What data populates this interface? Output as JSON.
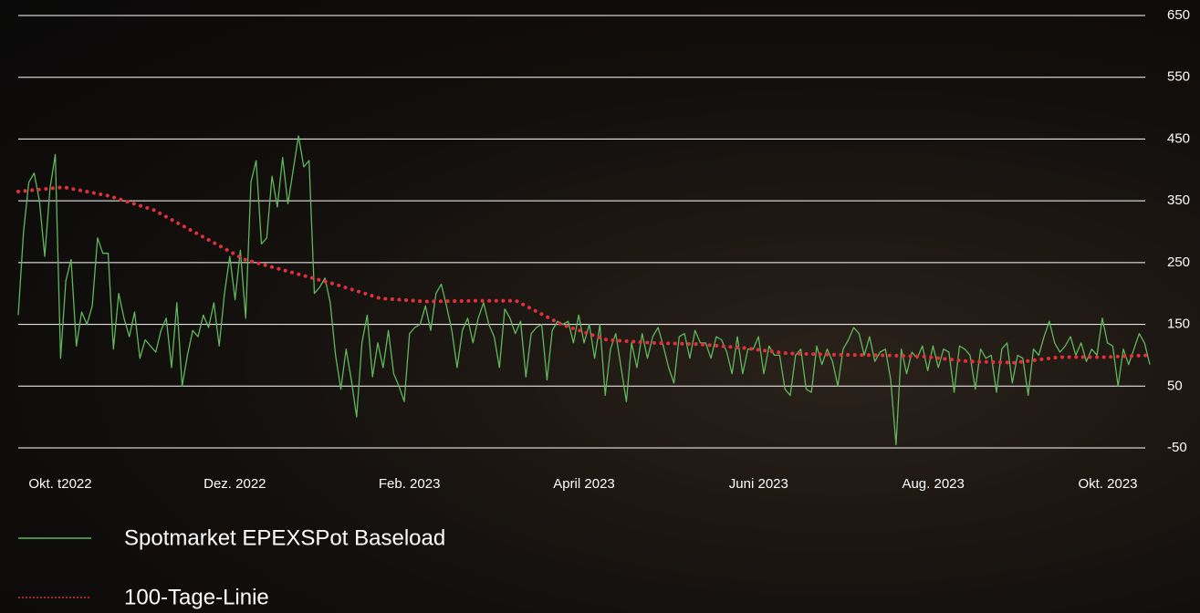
{
  "chart_data": {
    "type": "line",
    "x_labels": [
      "Okt. t2022",
      "Dez. 2022",
      "Feb. 2023",
      "April 2023",
      "Juni 2023",
      "Aug. 2023",
      "Okt. 2023"
    ],
    "ylim": [
      -50,
      650
    ],
    "yticks": [
      -50,
      50,
      150,
      250,
      350,
      450,
      550,
      650
    ],
    "grid": true,
    "series": [
      {
        "name": "Spotmarket EPEXSPot Baseload",
        "color": "#5fb85a",
        "style": "solid",
        "values": [
          165,
          300,
          380,
          395,
          350,
          260,
          370,
          425,
          95,
          220,
          255,
          115,
          170,
          150,
          180,
          290,
          265,
          265,
          110,
          200,
          160,
          130,
          170,
          95,
          125,
          115,
          105,
          140,
          160,
          80,
          185,
          50,
          100,
          140,
          130,
          165,
          145,
          185,
          115,
          200,
          260,
          190,
          270,
          160,
          380,
          415,
          280,
          290,
          390,
          340,
          420,
          345,
          400,
          455,
          405,
          415,
          200,
          210,
          225,
          185,
          100,
          45,
          110,
          60,
          0,
          120,
          165,
          65,
          120,
          80,
          140,
          70,
          50,
          25,
          135,
          145,
          150,
          180,
          140,
          200,
          215,
          180,
          140,
          80,
          140,
          160,
          120,
          160,
          185,
          150,
          130,
          80,
          175,
          160,
          135,
          155,
          65,
          135,
          145,
          150,
          60,
          140,
          155,
          150,
          155,
          120,
          165,
          120,
          150,
          95,
          150,
          35,
          110,
          135,
          80,
          25,
          120,
          80,
          135,
          95,
          130,
          145,
          115,
          80,
          55,
          130,
          135,
          95,
          140,
          120,
          120,
          95,
          130,
          125,
          105,
          70,
          130,
          70,
          110,
          110,
          130,
          70,
          115,
          100,
          100,
          45,
          35,
          100,
          110,
          45,
          40,
          115,
          85,
          110,
          90,
          50,
          110,
          125,
          145,
          135,
          100,
          130,
          90,
          105,
          110,
          60,
          -45,
          110,
          70,
          105,
          95,
          115,
          75,
          115,
          80,
          110,
          105,
          40,
          115,
          110,
          100,
          45,
          110,
          95,
          100,
          40,
          110,
          120,
          55,
          100,
          95,
          35,
          110,
          100,
          130,
          155,
          120,
          105,
          115,
          130,
          100,
          120,
          90,
          110,
          100,
          160,
          120,
          115,
          50,
          110,
          85,
          110,
          135,
          120,
          85
        ]
      },
      {
        "name": "100-Tage-Linie",
        "color": "#e0303a",
        "style": "dotted",
        "values": [
          365,
          372,
          358,
          335,
          295,
          255,
          235,
          215,
          192,
          187,
          188,
          188,
          150,
          125,
          120,
          118,
          112,
          103,
          101,
          100,
          98,
          90,
          88,
          97,
          97,
          100
        ]
      }
    ]
  }
}
